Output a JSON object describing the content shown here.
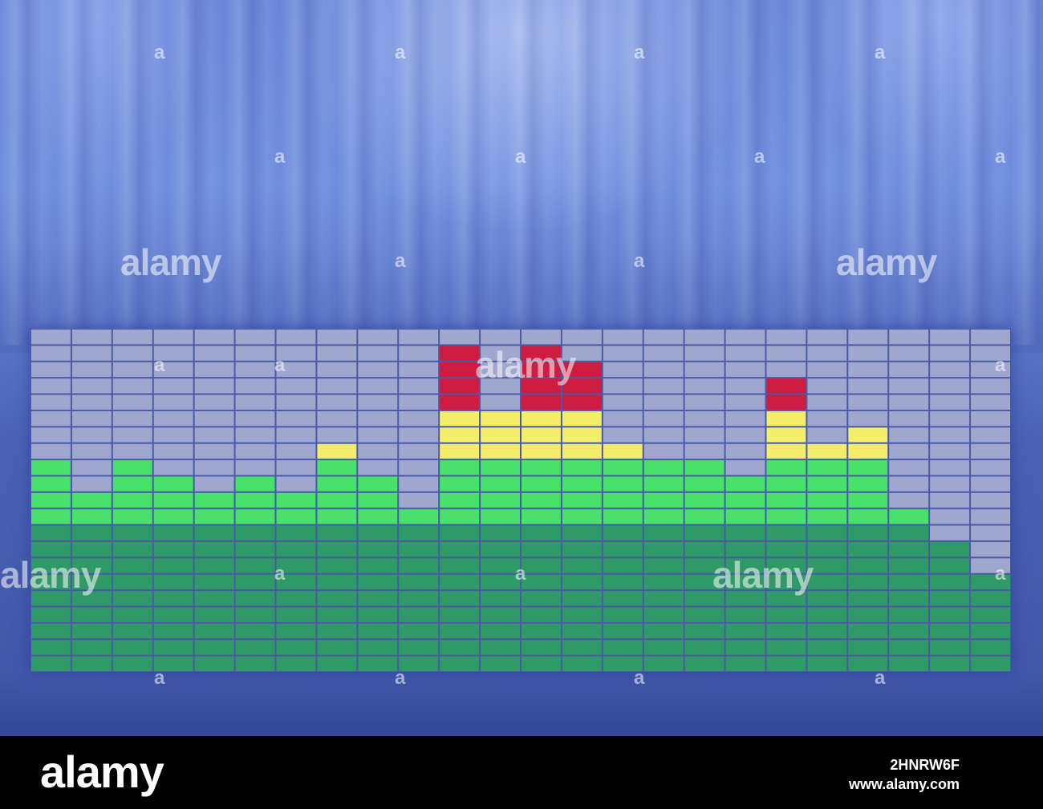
{
  "colors": {
    "off": "#a0a7cf",
    "low_green": "#2f9a68",
    "mid_green": "#47e16b",
    "yellow": "#f3ed6a",
    "red": "#cf1d42",
    "grid_line": "#4a5aa6"
  },
  "equalizer": {
    "columns": 24,
    "rows": 21,
    "levels": [
      13,
      11,
      13,
      12,
      11,
      12,
      11,
      14,
      12,
      10,
      19,
      16,
      19,
      18,
      14,
      13,
      13,
      12,
      18,
      14,
      15,
      10,
      8,
      6
    ],
    "peaks": [
      {
        "column": 10,
        "row": 20
      },
      {
        "column": 12,
        "row": 20
      },
      {
        "column": 13,
        "row": 19
      },
      {
        "column": 18,
        "row": 18
      }
    ]
  },
  "watermark": {
    "brand": "alamy",
    "glyph": "a"
  },
  "footer": {
    "brand": "alamy",
    "image_id": "2HNRW6F",
    "site": "www.alamy.com"
  }
}
